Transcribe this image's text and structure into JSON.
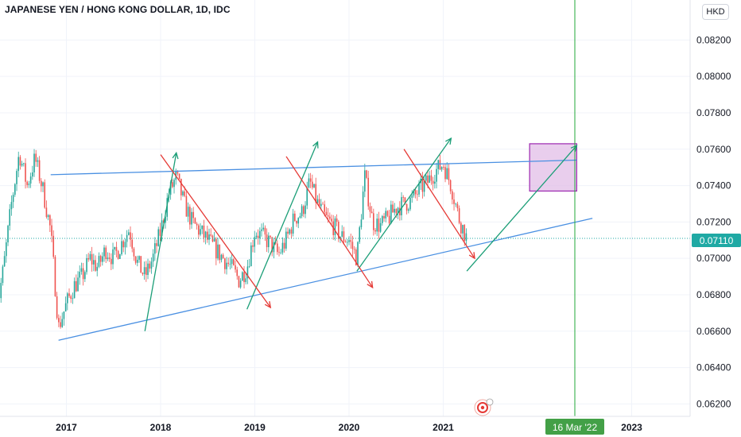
{
  "header": {
    "symbol_title": "JAPANESE YEN / HONG KONG DOLLAR, 1D, IDC",
    "currency_badge": "HKD"
  },
  "colors": {
    "candle_up": "#26a69a",
    "candle_down": "#ef5350",
    "trendline_blue": "#4a90e2",
    "arrow_green": "#1b9e77",
    "arrow_red": "#e53935",
    "price_line": "#1fa9a4",
    "price_badge": "#1fa9a4",
    "crosshair": "#22a83a",
    "date_badge": "#43a047",
    "target_box_fill": "#e1bee7",
    "target_box_stroke": "#9c27b0"
  },
  "chart_data": {
    "type": "candlestick",
    "x_axis": {
      "ticks": [
        "2017",
        "2018",
        "2019",
        "2020",
        "2021",
        "2023"
      ],
      "range": [
        "2016-04",
        "2023-06"
      ]
    },
    "y_axis": {
      "ticks": [
        "0.08200",
        "0.08000",
        "0.07800",
        "0.07600",
        "0.07400",
        "0.07200",
        "0.07000",
        "0.06800",
        "0.06600",
        "0.06400",
        "0.06200"
      ],
      "range": [
        0.0618,
        0.0842
      ]
    },
    "current_price": "0.07110",
    "crosshair_date": "16 Mar '22",
    "price_path": [
      [
        "2016-04",
        0.0668
      ],
      [
        "2016-05",
        0.0695
      ],
      [
        "2016-06",
        0.073
      ],
      [
        "2016-07",
        0.0758
      ],
      [
        "2016-08",
        0.074
      ],
      [
        "2016-09",
        0.0755
      ],
      [
        "2016-10",
        0.0738
      ],
      [
        "2016-11",
        0.0715
      ],
      [
        "2016-12",
        0.0662
      ],
      [
        "2017-01",
        0.0675
      ],
      [
        "2017-02",
        0.0685
      ],
      [
        "2017-03",
        0.069
      ],
      [
        "2017-04",
        0.07
      ],
      [
        "2017-05",
        0.0695
      ],
      [
        "2017-06",
        0.0705
      ],
      [
        "2017-07",
        0.07
      ],
      [
        "2017-08",
        0.0708
      ],
      [
        "2017-09",
        0.0716
      ],
      [
        "2017-10",
        0.0698
      ],
      [
        "2017-11",
        0.069
      ],
      [
        "2017-12",
        0.07
      ],
      [
        "2018-01",
        0.0715
      ],
      [
        "2018-02",
        0.0735
      ],
      [
        "2018-03",
        0.0745
      ],
      [
        "2018-04",
        0.073
      ],
      [
        "2018-05",
        0.072
      ],
      [
        "2018-06",
        0.0715
      ],
      [
        "2018-07",
        0.071
      ],
      [
        "2018-08",
        0.0705
      ],
      [
        "2018-09",
        0.07
      ],
      [
        "2018-10",
        0.0695
      ],
      [
        "2018-11",
        0.0688
      ],
      [
        "2018-12",
        0.0695
      ],
      [
        "2019-01",
        0.0715
      ],
      [
        "2019-02",
        0.0712
      ],
      [
        "2019-03",
        0.0708
      ],
      [
        "2019-04",
        0.0702
      ],
      [
        "2019-05",
        0.071
      ],
      [
        "2019-06",
        0.0722
      ],
      [
        "2019-07",
        0.0725
      ],
      [
        "2019-08",
        0.0742
      ],
      [
        "2019-09",
        0.073
      ],
      [
        "2019-10",
        0.0722
      ],
      [
        "2019-11",
        0.0718
      ],
      [
        "2019-12",
        0.0712
      ],
      [
        "2020-01",
        0.071
      ],
      [
        "2020-02",
        0.07
      ],
      [
        "2020-03",
        0.0745
      ],
      [
        "2020-04",
        0.072
      ],
      [
        "2020-05",
        0.0718
      ],
      [
        "2020-06",
        0.0722
      ],
      [
        "2020-07",
        0.0728
      ],
      [
        "2020-08",
        0.073
      ],
      [
        "2020-09",
        0.0732
      ],
      [
        "2020-10",
        0.0738
      ],
      [
        "2020-11",
        0.0742
      ],
      [
        "2020-12",
        0.0748
      ],
      [
        "2021-01",
        0.0752
      ],
      [
        "2021-02",
        0.074
      ],
      [
        "2021-03",
        0.0722
      ],
      [
        "2021-04",
        0.0711
      ]
    ],
    "annotations": {
      "trendlines_blue": [
        {
          "from": [
            "2016-11",
            0.0746
          ],
          "to": [
            "2022-06",
            0.0754
          ]
        },
        {
          "from": [
            "2016-12",
            0.0655
          ],
          "to": [
            "2022-08",
            0.0722
          ]
        }
      ],
      "arrows_green": [
        {
          "from": [
            "2017-11",
            0.066
          ],
          "to": [
            "2018-03",
            0.0758
          ]
        },
        {
          "from": [
            "2018-12",
            0.0672
          ],
          "to": [
            "2019-09",
            0.0764
          ]
        },
        {
          "from": [
            "2020-02",
            0.0693
          ],
          "to": [
            "2021-02",
            0.0766
          ]
        },
        {
          "from": [
            "2021-04",
            0.0693
          ],
          "to": [
            "2022-06",
            0.0762
          ]
        }
      ],
      "arrows_red": [
        {
          "from": [
            "2018-01",
            0.0757
          ],
          "to": [
            "2019-03",
            0.0673
          ]
        },
        {
          "from": [
            "2019-05",
            0.0756
          ],
          "to": [
            "2020-04",
            0.0684
          ]
        },
        {
          "from": [
            "2020-08",
            0.076
          ],
          "to": [
            "2021-05",
            0.07
          ]
        }
      ],
      "target_box": {
        "x": [
          "2021-12",
          "2022-06"
        ],
        "y": [
          0.0737,
          0.0763
        ]
      }
    }
  }
}
